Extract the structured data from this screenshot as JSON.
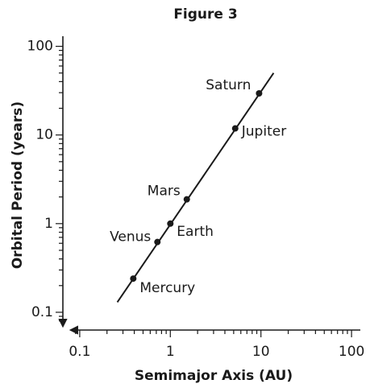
{
  "chart_data": {
    "type": "scatter",
    "title": "Figure 3",
    "x_label": "Semimajor Axis (AU)",
    "y_label": "Orbital Period (years)",
    "log_x": true,
    "log_y": true,
    "minor_ticks": true,
    "labels": [
      "Mercury",
      "Venus",
      "Earth",
      "Mars",
      "Jupiter",
      "Saturn"
    ],
    "x": [
      0.39,
      0.72,
      1,
      1.52,
      5.2,
      9.54
    ],
    "values": [
      0.24,
      0.62,
      1,
      1.88,
      11.86,
      29.46
    ],
    "color": "#1a1a1a",
    "line": {
      "x": [
        0.26,
        13.8
      ],
      "y": [
        0.13,
        50
      ]
    },
    "xlim": [
      0.08,
      125
    ],
    "ylim": [
      0.07,
      130
    ],
    "xticks": [
      0.1,
      1,
      10,
      100
    ],
    "yticks": [
      0.1,
      1,
      10,
      100
    ]
  }
}
